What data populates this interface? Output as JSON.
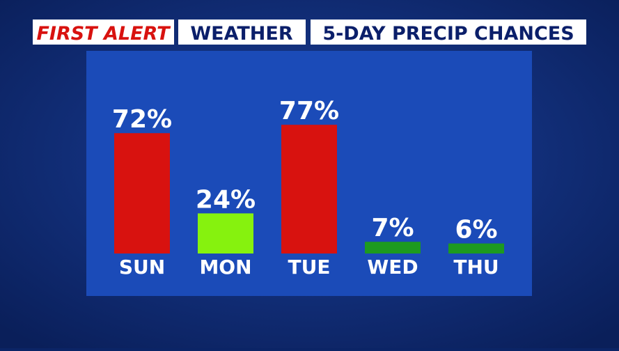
{
  "chart_data": {
    "type": "bar",
    "title_parts": [
      "FIRST ALERT",
      "WEATHER",
      "5-DAY PRECIP CHANCES"
    ],
    "categories": [
      "SUN",
      "MON",
      "TUE",
      "WED",
      "THU"
    ],
    "values": [
      72,
      24,
      77,
      7,
      6
    ],
    "value_labels": [
      "72%",
      "24%",
      "77%",
      "7%",
      "6%"
    ],
    "colors": [
      "#d8120f",
      "#86f20e",
      "#d8120f",
      "#1d9a1f",
      "#1d9a1f"
    ]
  }
}
